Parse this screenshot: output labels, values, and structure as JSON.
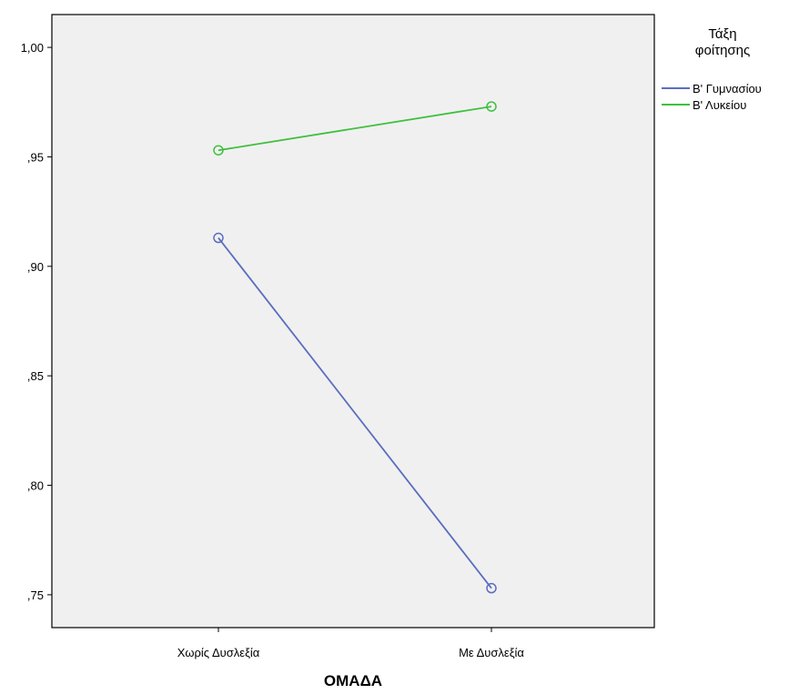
{
  "chart_data": {
    "type": "line",
    "categories": [
      "Χωρίς Δυσλεξία",
      "Με Δυσλεξία"
    ],
    "xlabel": "ΟΜΑΔΑ",
    "ylabel": "",
    "ylim": [
      0.735,
      1.015
    ],
    "yticks": [
      1.0,
      0.95,
      0.9,
      0.85,
      0.8,
      0.75
    ],
    "ytick_labels": [
      "1,00",
      ",95",
      ",90",
      ",85",
      ",80",
      ",75"
    ],
    "grid": false,
    "plot_background": "#f0f0f0",
    "legend": {
      "title_lines": [
        "Τάξη",
        "φοίτησης"
      ],
      "placement": "right"
    },
    "series": [
      {
        "name": "Β' Γυμνασίου",
        "values": [
          0.913,
          0.753
        ],
        "color": "#5a6dbf"
      },
      {
        "name": "Β' Λυκείου",
        "values": [
          0.953,
          0.973
        ],
        "color": "#3ec03e"
      }
    ]
  }
}
